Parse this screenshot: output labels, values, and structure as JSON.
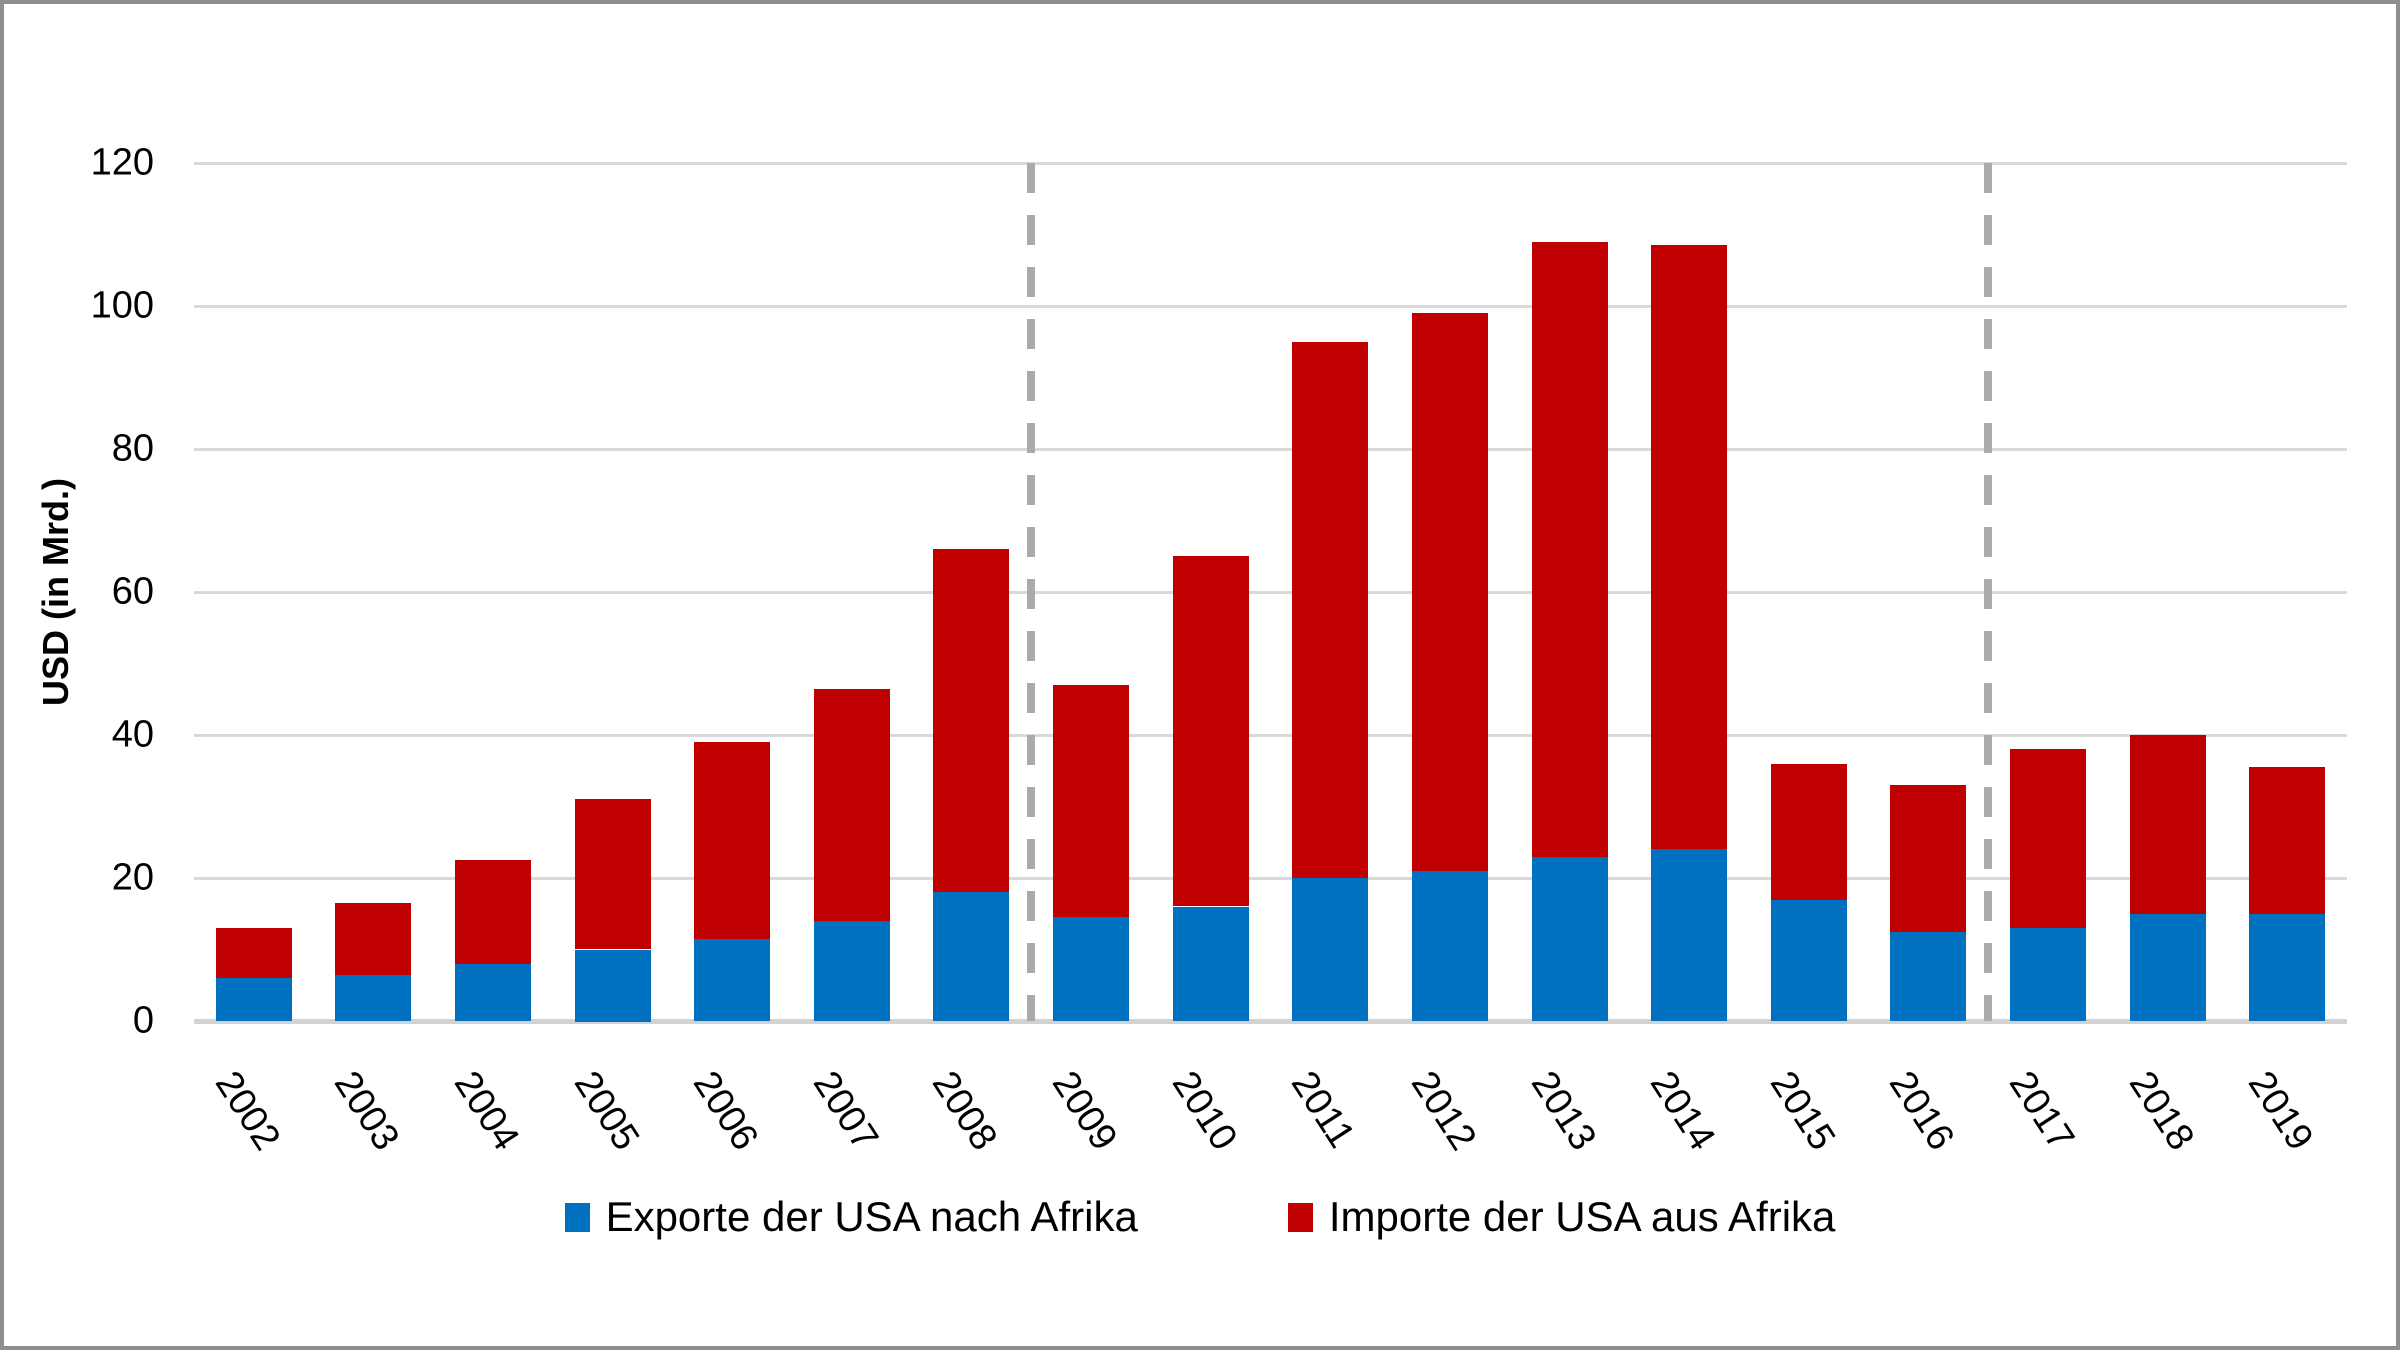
{
  "figure": {
    "background": "#FFFFFF",
    "border_color": "#8C9090",
    "text_color": "#000000"
  },
  "chart_data": {
    "type": "bar",
    "stacked": true,
    "title": "",
    "xlabel": "",
    "ylabel": "USD (in Mrd.)",
    "ylim": [
      0,
      120
    ],
    "yticks": [
      0,
      20,
      40,
      60,
      80,
      100,
      120
    ],
    "grid": true,
    "gridline_color": "#D9D9D9",
    "legend_position": "bottom",
    "categories": [
      "2002",
      "2003",
      "2004",
      "2005",
      "2006",
      "2007",
      "2008",
      "2009",
      "2010",
      "2011",
      "2012",
      "2013",
      "2014",
      "2015",
      "2016",
      "2017",
      "2018",
      "2019"
    ],
    "series": [
      {
        "name": "Exporte der USA nach Afrika",
        "color": "#0070C0",
        "values": [
          6,
          6.5,
          8,
          10,
          11.5,
          14,
          18,
          14.5,
          16,
          20,
          21,
          23,
          24,
          17,
          12.5,
          13,
          15,
          15
        ]
      },
      {
        "name": "Importe der USA aus Afrika",
        "color": "#C00000",
        "values": [
          7,
          10,
          14.5,
          21,
          27.5,
          32.5,
          48,
          32.5,
          49,
          75,
          78,
          86,
          84.5,
          19,
          20.5,
          25,
          25,
          20.5
        ]
      }
    ],
    "stack_totals": [
      13,
      16.5,
      22.5,
      31,
      39,
      46.5,
      66,
      47,
      65,
      95,
      99,
      109,
      108.5,
      36,
      33,
      38,
      40,
      35.5
    ],
    "separators_after_categories": [
      "2008",
      "2016"
    ],
    "separator_color": "#ABABAB"
  }
}
